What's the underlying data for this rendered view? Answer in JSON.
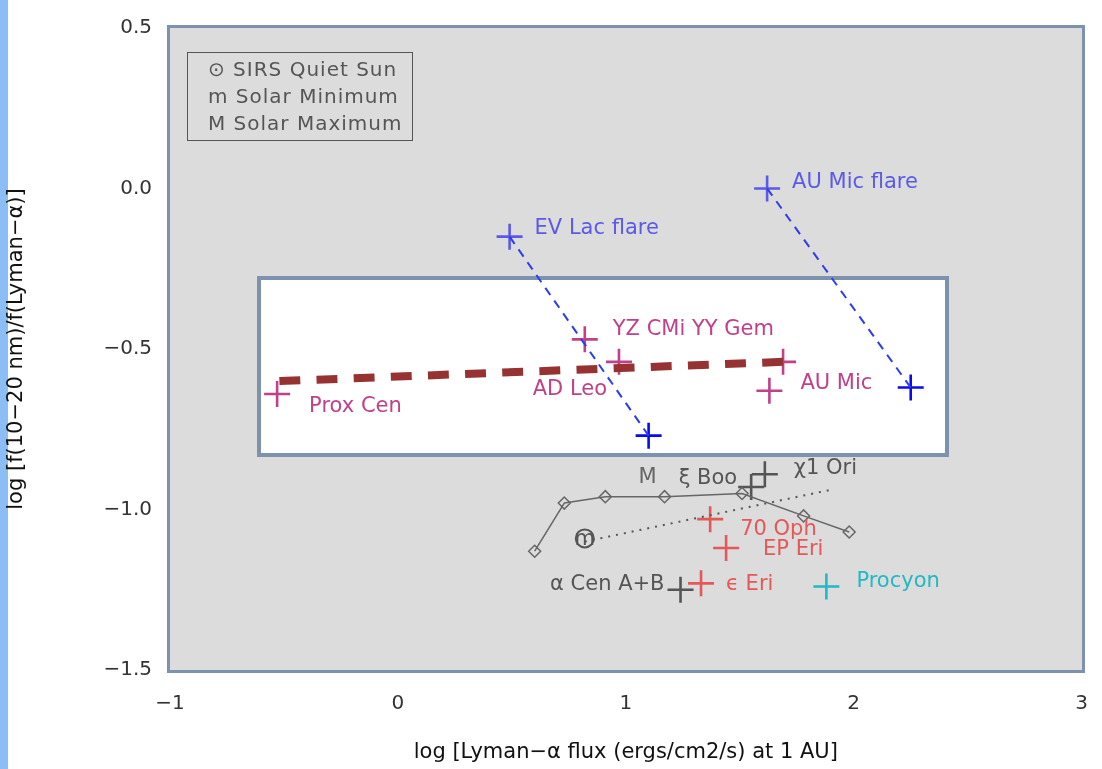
{
  "chart_data": {
    "type": "scatter",
    "xlabel": "log [Lyman−α flux (ergs/cm2/s) at 1 AU]",
    "ylabel": "log [f(10−20 nm)/f(Lyman−α)]",
    "xlim": [
      -1,
      3
    ],
    "xticks": [
      {
        "value": -1,
        "label": "−1"
      },
      0,
      1,
      2,
      3
    ],
    "ylim": [
      -1.5,
      0.5
    ],
    "yticks": [
      {
        "value": -1.5,
        "label": "−1.5"
      },
      {
        "value": -1,
        "label": "−1.0"
      },
      {
        "value": -0.5,
        "label": "−0.5"
      },
      {
        "value": 0,
        "label": "0.0"
      },
      {
        "value": 0.5,
        "label": "0.5"
      }
    ],
    "grid": false,
    "legend": false,
    "marker": "cross",
    "series": [
      {
        "type": "line",
        "color": "#2a3cf0",
        "line_style": "dashed",
        "marker": "none",
        "x": [
          0.49,
          1.1
        ],
        "values": [
          -0.15,
          -0.77
        ]
      },
      {
        "type": "line",
        "color": "#2a3cf0",
        "line_style": "dashed",
        "marker": "none",
        "x": [
          1.62,
          2.25
        ],
        "values": [
          0.0,
          -0.62
        ]
      },
      {
        "type": "line",
        "color": "#963232",
        "line_style": "dashed",
        "marker": "none",
        "x": [
          -0.52,
          1.69
        ],
        "values": [
          -0.6,
          -0.54
        ]
      },
      {
        "type": "line",
        "color": "#666666",
        "line_style": "solid",
        "marker": "diamond",
        "x": [
          0.6,
          0.73,
          0.91,
          1.17,
          1.51,
          1.78,
          1.98
        ],
        "values": [
          -1.13,
          -0.98,
          -0.96,
          -0.96,
          -0.95,
          -1.02,
          -1.07
        ]
      },
      {
        "type": "line",
        "color": "#555555",
        "line_style": "dotted",
        "marker": "none",
        "x": [
          0.82,
          1.89
        ],
        "values": [
          -1.1,
          -0.94
        ]
      },
      {
        "color": "#555555",
        "marker": "circle",
        "x": [
          0.82
        ],
        "values": [
          -1.09
        ]
      },
      {
        "color": "#5a5ae6",
        "x": [
          0.49,
          1.62
        ],
        "values": [
          -0.15,
          0.0
        ]
      },
      {
        "color": "#0a0af0",
        "x": [
          1.1,
          2.25
        ],
        "values": [
          -0.77,
          -0.62
        ]
      },
      {
        "color": "#c0408a",
        "x": [
          -0.53,
          0.82,
          0.97,
          1.63,
          1.69
        ],
        "values": [
          -0.64,
          -0.47,
          -0.54,
          -0.63,
          -0.54
        ]
      },
      {
        "color": "#555555",
        "x": [
          1.24,
          1.55,
          1.61
        ],
        "values": [
          -1.25,
          -0.93,
          -0.89
        ]
      },
      {
        "color": "#e45858",
        "x": [
          1.33,
          1.37,
          1.44
        ],
        "values": [
          -1.23,
          -1.03,
          -1.12
        ]
      },
      {
        "color": "#22b8c4",
        "x": [
          1.88
        ],
        "values": [
          -1.24
        ]
      }
    ],
    "annotations": [
      "⊙ SIRS Quiet Sun",
      "m Solar Minimum",
      "M Solar Maximum",
      {
        "text": "EV Lac flare",
        "x": 0.49,
        "y": -0.15
      },
      {
        "text": "AU Mic flare",
        "x": 1.62,
        "y": 0.0
      },
      {
        "text": "YZ CMi YY Gem",
        "x": 0.82,
        "y": -0.47
      },
      {
        "text": "AD Leo",
        "x": 0.97,
        "y": -0.54
      },
      {
        "text": "AU Mic",
        "x": 1.63,
        "y": -0.63
      },
      {
        "text": "Prox Cen",
        "x": -0.53,
        "y": -0.64
      },
      {
        "text": "χ1 Ori",
        "x": 1.61,
        "y": -0.89
      },
      {
        "text": "ξ Boo",
        "x": 1.55,
        "y": -0.93
      },
      {
        "text": "70 Oph",
        "x": 1.37,
        "y": -1.03
      },
      {
        "text": "EP Eri",
        "x": 1.44,
        "y": -1.12
      },
      {
        "text": "ϵ Eri",
        "x": 1.33,
        "y": -1.23
      },
      {
        "text": "α Cen A+B",
        "x": 1.24,
        "y": -1.25
      },
      {
        "text": "Procyon",
        "x": 1.88,
        "y": -1.24
      },
      {
        "text": "M",
        "x": 1.17,
        "y": -0.96
      },
      {
        "text": "m",
        "x": 0.82,
        "y": -1.09
      }
    ]
  }
}
